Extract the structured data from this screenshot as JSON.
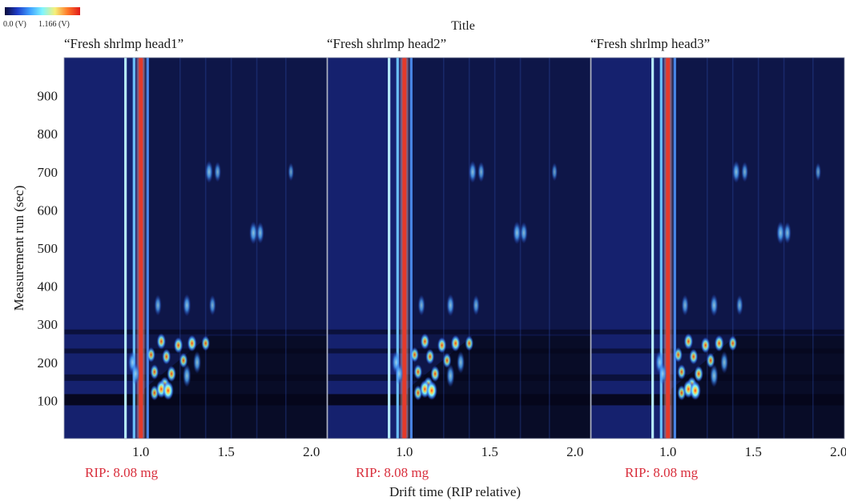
{
  "chart_data": {
    "type": "heatmap",
    "title": "Title",
    "xlabel": "Drift time (RIP relative)",
    "ylabel": "Measurement run (sec)",
    "xlim": [
      0.55,
      2.1
    ],
    "ylim": [
      0,
      1000
    ],
    "x_ticks": [
      "1.0",
      "1.5",
      "2.0"
    ],
    "y_ticks": [
      "100",
      "200",
      "300",
      "400",
      "500",
      "600",
      "700",
      "800",
      "900"
    ],
    "colorscale": {
      "min_label": "0.0 (V)",
      "max_label": "1.166 (V)",
      "colors": [
        "#0b0b3a",
        "#1e3cc8",
        "#3fa0ff",
        "#7ff5ff",
        "#f5f07a",
        "#ff7a2a",
        "#e01a1a"
      ]
    },
    "background_color": "#15216e",
    "panels": [
      {
        "name": "“Fresh shrlmp head1”",
        "annotation": "RIP: 8.08 mg"
      },
      {
        "name": "“Fresh shrlmp head2”",
        "annotation": "RIP: 8.08 mg"
      },
      {
        "name": "“Fresh shrlmp head3”",
        "annotation": "RIP: 8.08 mg"
      }
    ],
    "reactant_ion_peak": {
      "x": 1.0,
      "color": "#e43a2a"
    },
    "vertical_lines": [
      {
        "x": 0.91,
        "color": "#bff6ff"
      },
      {
        "x": 0.96,
        "color": "#6fc9ff"
      },
      {
        "x": 1.04,
        "color": "#4d8cf0"
      }
    ],
    "spots": [
      {
        "x": 1.4,
        "y": 700,
        "intensity": 0.5
      },
      {
        "x": 1.45,
        "y": 700,
        "intensity": 0.35
      },
      {
        "x": 1.66,
        "y": 540,
        "intensity": 0.55
      },
      {
        "x": 1.7,
        "y": 540,
        "intensity": 0.45
      },
      {
        "x": 1.88,
        "y": 700,
        "intensity": 0.2
      },
      {
        "x": 1.1,
        "y": 350,
        "intensity": 0.4
      },
      {
        "x": 1.27,
        "y": 350,
        "intensity": 0.5
      },
      {
        "x": 1.42,
        "y": 350,
        "intensity": 0.35
      },
      {
        "x": 1.12,
        "y": 255,
        "intensity": 0.7
      },
      {
        "x": 1.22,
        "y": 245,
        "intensity": 0.7
      },
      {
        "x": 1.3,
        "y": 250,
        "intensity": 0.75
      },
      {
        "x": 1.38,
        "y": 250,
        "intensity": 0.6
      },
      {
        "x": 1.06,
        "y": 220,
        "intensity": 0.6
      },
      {
        "x": 1.15,
        "y": 215,
        "intensity": 0.65
      },
      {
        "x": 1.25,
        "y": 205,
        "intensity": 0.6
      },
      {
        "x": 1.33,
        "y": 200,
        "intensity": 0.5
      },
      {
        "x": 0.95,
        "y": 200,
        "intensity": 0.55
      },
      {
        "x": 0.97,
        "y": 170,
        "intensity": 0.5
      },
      {
        "x": 1.08,
        "y": 175,
        "intensity": 0.6
      },
      {
        "x": 1.18,
        "y": 170,
        "intensity": 0.7
      },
      {
        "x": 1.27,
        "y": 165,
        "intensity": 0.55
      },
      {
        "x": 1.14,
        "y": 140,
        "intensity": 0.8
      },
      {
        "x": 1.08,
        "y": 120,
        "intensity": 0.6
      },
      {
        "x": 1.12,
        "y": 130,
        "intensity": 0.9
      },
      {
        "x": 1.16,
        "y": 126,
        "intensity": 1.0
      }
    ],
    "dark_bands": [
      {
        "y": 102,
        "height": 14
      },
      {
        "y": 160,
        "height": 8
      },
      {
        "y": 230,
        "height": 6
      },
      {
        "y": 280,
        "height": 6
      }
    ]
  }
}
